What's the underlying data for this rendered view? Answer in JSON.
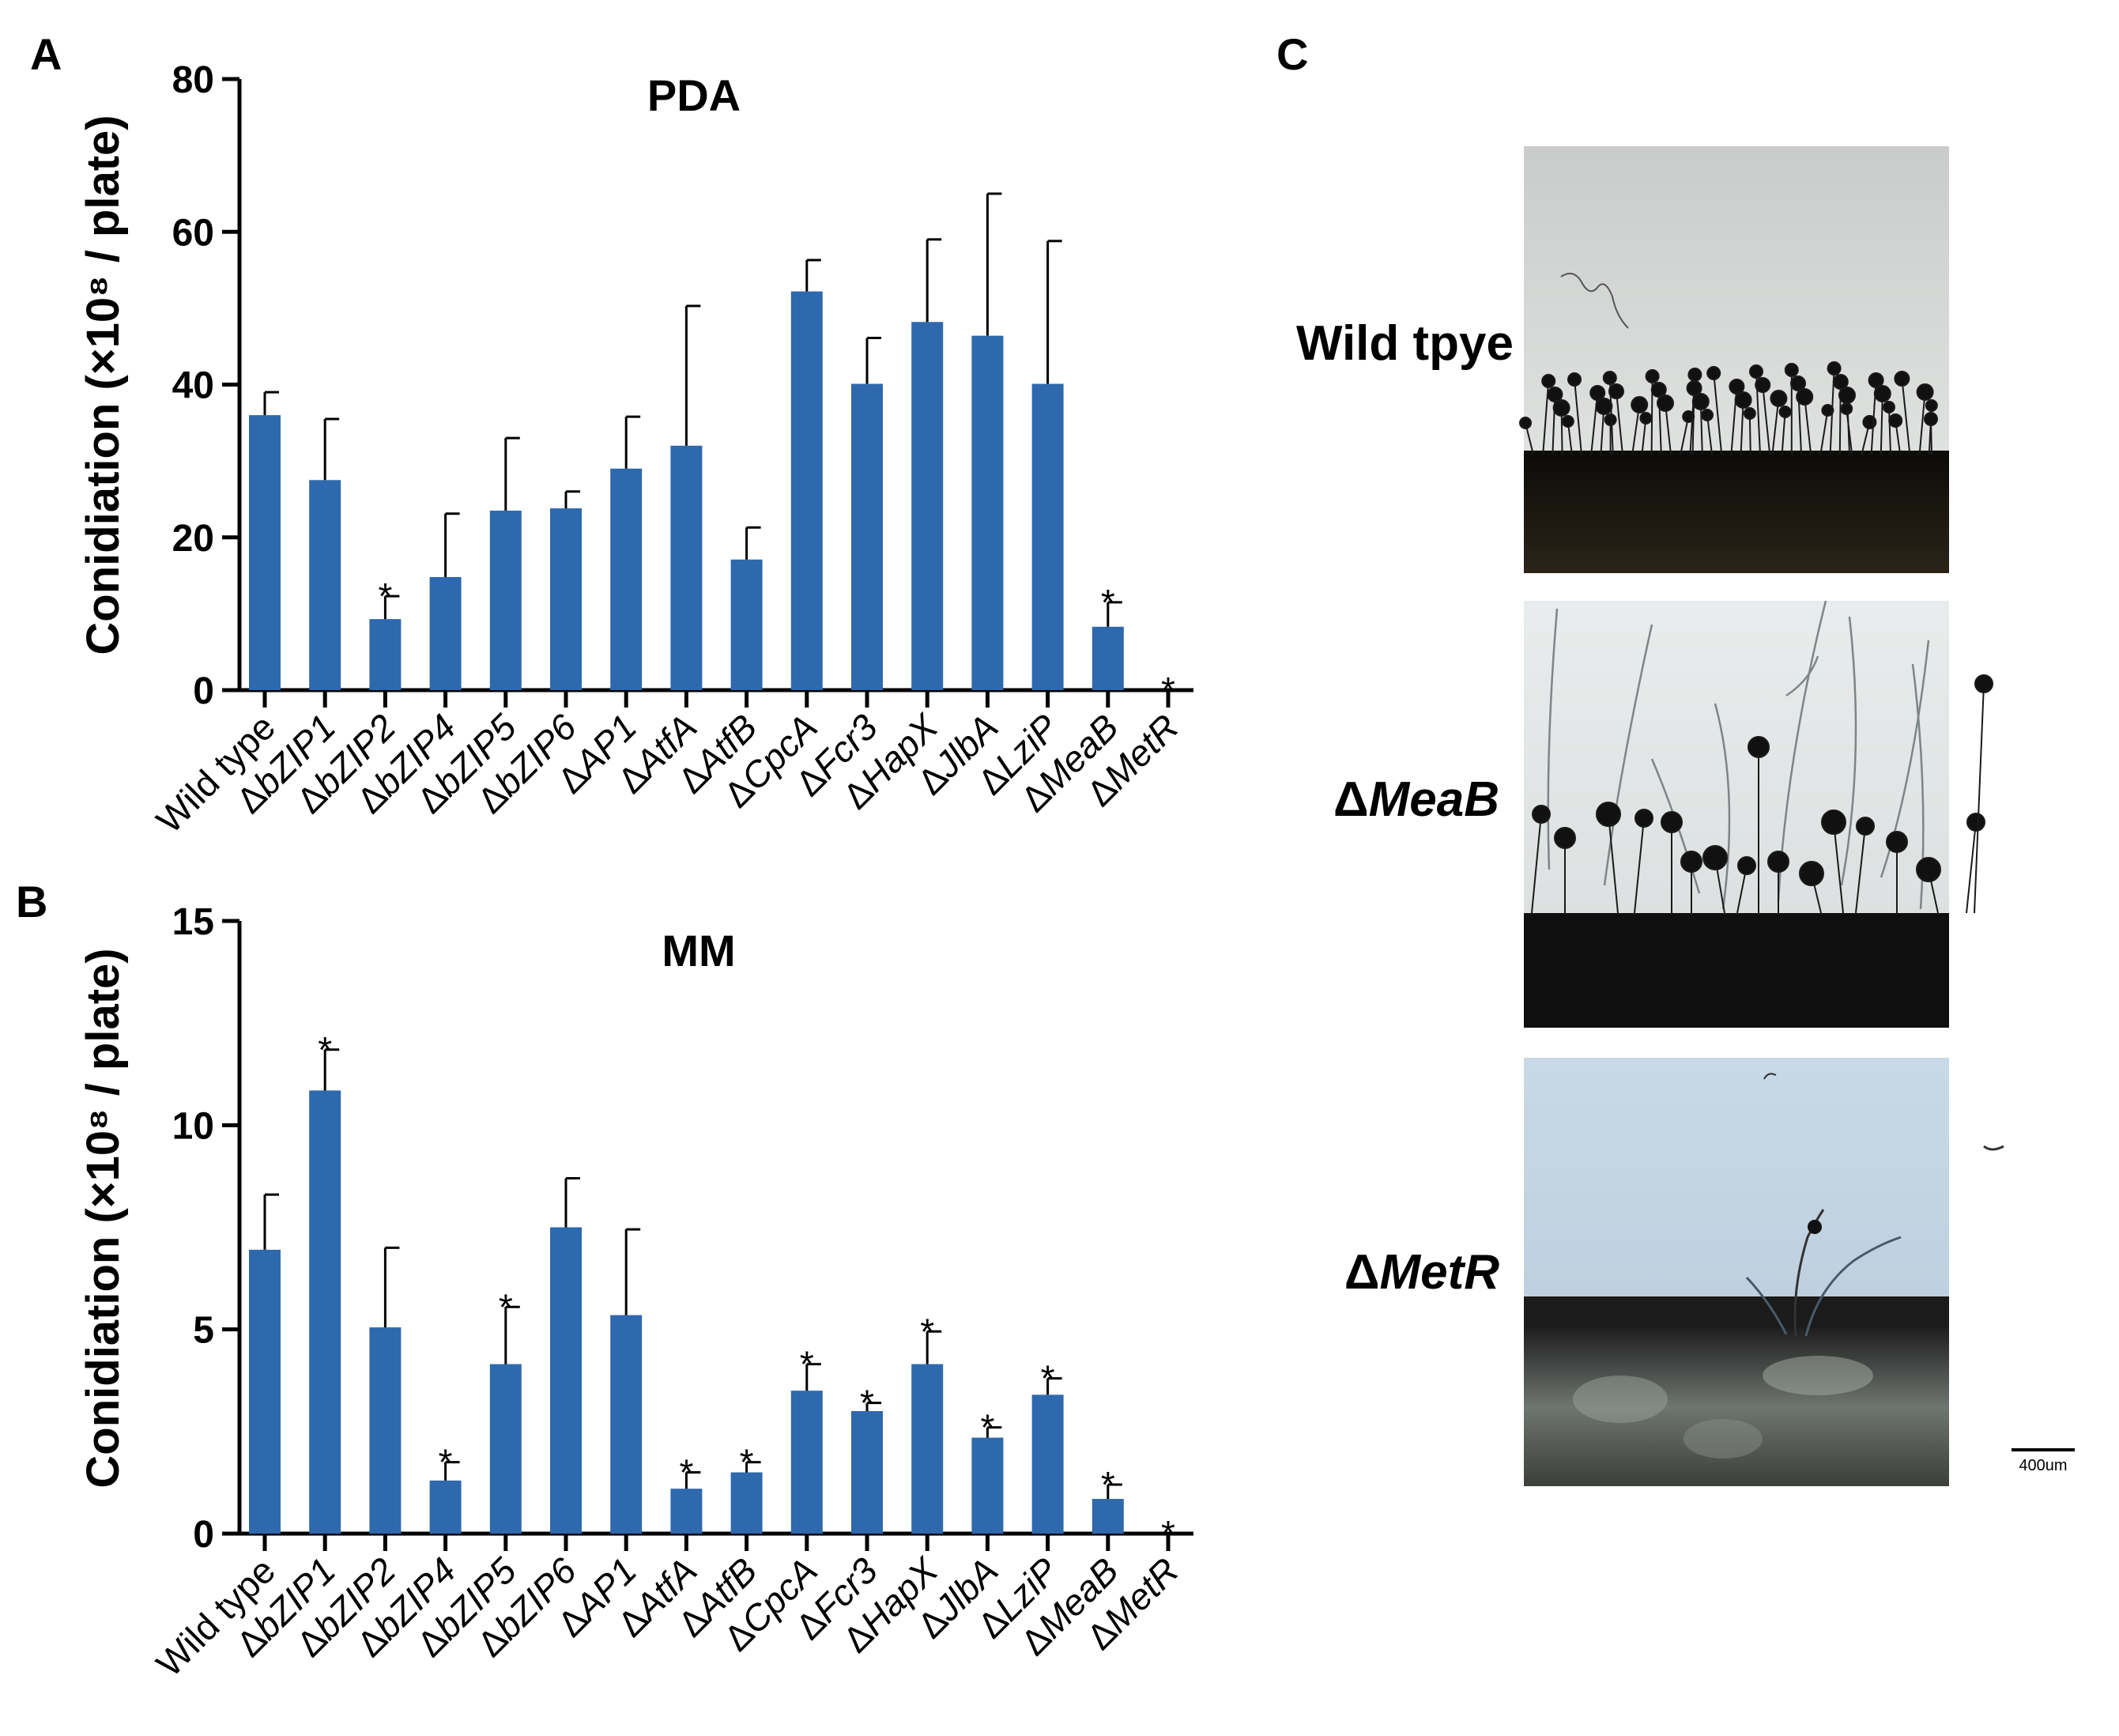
{
  "colors": {
    "bar": "#2E69AE",
    "axis": "#000000"
  },
  "panels": {
    "A": {
      "letter": "A"
    },
    "B": {
      "letter": "B"
    },
    "C": {
      "letter": "C"
    }
  },
  "chart_data": [
    {
      "type": "bar",
      "panel": "A",
      "title": "PDA",
      "ylabel": "Conidiation (×10⁸ / plate)",
      "ylim": [
        0,
        80
      ],
      "yticks": [
        0,
        20,
        40,
        60,
        80
      ],
      "categories": [
        {
          "symbol": "",
          "name": "Wild type"
        },
        {
          "symbol": "Δ",
          "name": "bZIP1"
        },
        {
          "symbol": "Δ",
          "name": "bZIP2"
        },
        {
          "symbol": "Δ",
          "name": "bZIP4"
        },
        {
          "symbol": "Δ",
          "name": "bZIP5"
        },
        {
          "symbol": "Δ",
          "name": "bZIP6"
        },
        {
          "symbol": "Δ",
          "name": "AP1"
        },
        {
          "symbol": "Δ",
          "name": "AtfA"
        },
        {
          "symbol": "Δ",
          "name": "AtfB"
        },
        {
          "symbol": "Δ",
          "name": "CpcA"
        },
        {
          "symbol": "Δ",
          "name": "Fcr3"
        },
        {
          "symbol": "Δ",
          "name": "HapX"
        },
        {
          "symbol": "Δ",
          "name": "JlbA"
        },
        {
          "symbol": "Δ",
          "name": "LziP"
        },
        {
          "symbol": "Δ",
          "name": "MeaB"
        },
        {
          "symbol": "Δ",
          "name": "MetR"
        }
      ],
      "values": [
        36,
        27.5,
        9.3,
        14.8,
        23.5,
        23.8,
        29,
        32,
        17.1,
        52.2,
        40.1,
        48.2,
        46.4,
        40.1,
        8.3,
        0
      ],
      "errors": [
        3,
        8,
        3,
        8.3,
        9.5,
        2.2,
        6.8,
        18.3,
        4.2,
        4.1,
        6,
        10.8,
        18.6,
        18.7,
        3.2,
        0
      ],
      "significant": [
        false,
        false,
        true,
        false,
        false,
        false,
        false,
        false,
        false,
        false,
        false,
        false,
        false,
        false,
        true,
        true
      ],
      "significance_mark": "*"
    },
    {
      "type": "bar",
      "panel": "B",
      "title": "MM",
      "ylabel": "Conidiation (×10⁸ / plate)",
      "ylim": [
        0,
        15
      ],
      "yticks": [
        0,
        5,
        10,
        15
      ],
      "categories": [
        {
          "symbol": "",
          "name": "Wild type"
        },
        {
          "symbol": "Δ",
          "name": "bZIP1"
        },
        {
          "symbol": "Δ",
          "name": "bZIP2"
        },
        {
          "symbol": "Δ",
          "name": "bZIP4"
        },
        {
          "symbol": "Δ",
          "name": "bZIP5"
        },
        {
          "symbol": "Δ",
          "name": "bZIP6"
        },
        {
          "symbol": "Δ",
          "name": "AP1"
        },
        {
          "symbol": "Δ",
          "name": "AtfA"
        },
        {
          "symbol": "Δ",
          "name": "AtfB"
        },
        {
          "symbol": "Δ",
          "name": "CpcA"
        },
        {
          "symbol": "Δ",
          "name": "Fcr3"
        },
        {
          "symbol": "Δ",
          "name": "HapX"
        },
        {
          "symbol": "Δ",
          "name": "JlbA"
        },
        {
          "symbol": "Δ",
          "name": "LziP"
        },
        {
          "symbol": "Δ",
          "name": "MeaB"
        },
        {
          "symbol": "Δ",
          "name": "MetR"
        }
      ],
      "values": [
        6.95,
        10.85,
        5.05,
        1.3,
        4.15,
        7.5,
        5.35,
        1.1,
        1.5,
        3.5,
        3.0,
        4.15,
        2.35,
        3.4,
        0.85,
        0
      ],
      "errors": [
        1.35,
        1.0,
        1.95,
        0.45,
        1.4,
        1.2,
        2.1,
        0.4,
        0.25,
        0.65,
        0.2,
        0.8,
        0.25,
        0.4,
        0.35,
        0
      ],
      "significant": [
        false,
        true,
        false,
        true,
        true,
        false,
        false,
        true,
        true,
        true,
        true,
        true,
        true,
        true,
        true,
        true
      ],
      "significance_mark": "*"
    }
  ],
  "photos": [
    {
      "symbol": "",
      "name": "Wild tpye"
    },
    {
      "symbol": "Δ",
      "name": "MeaB"
    },
    {
      "symbol": "Δ",
      "name": "MetR"
    }
  ],
  "scale_bar_label": "400um"
}
